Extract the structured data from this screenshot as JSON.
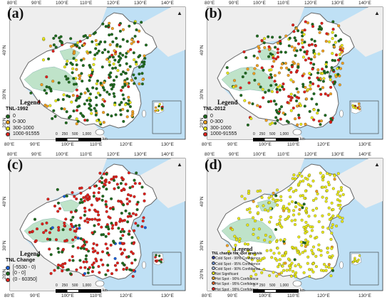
{
  "colors": {
    "sea": "#bfe0f5",
    "land_outside": "#eeeeee",
    "china": "#ffffff",
    "plateau": "#bfe3c9",
    "border": "#666666",
    "dark_green": "#1e6b1e",
    "red": "#e0201a",
    "orange": "#f0a020",
    "yellow": "#e8e816",
    "grey": "#9a9a9a",
    "blue": "#1a5fd8"
  },
  "icons": {
    "north_arrow": "north-arrow-icon"
  },
  "axes": {
    "top_lon": [
      "80°E",
      "90°E",
      "100°E",
      "110°E",
      "120°E",
      "130°E",
      "140°E"
    ],
    "bottom_lon": [
      "80°E",
      "90°E",
      "100°E",
      "110°E",
      "120°E",
      "130°E"
    ],
    "lat": [
      "40°N",
      "30°N",
      "20°N"
    ]
  },
  "scalebar": {
    "ticks": [
      "0",
      "250",
      "500",
      "1,000"
    ],
    "unit": "km"
  },
  "panels": [
    {
      "label": "(a)",
      "legend": {
        "title": "Legend",
        "subtitle": "TNL-1992",
        "items": [
          {
            "label": "0",
            "color": "#1e6b1e"
          },
          {
            "label": "0-300",
            "color": "#f0a020"
          },
          {
            "label": "300-1000",
            "color": "#e8e816"
          },
          {
            "label": "1000-91555",
            "color": "#e0201a"
          }
        ]
      }
    },
    {
      "label": "(b)",
      "legend": {
        "title": "Legend",
        "subtitle": "TNL-2012",
        "items": [
          {
            "label": "0",
            "color": "#1e6b1e"
          },
          {
            "label": "0-300",
            "color": "#f0a020"
          },
          {
            "label": "300-1000",
            "color": "#e8e816"
          },
          {
            "label": "1000-91555",
            "color": "#e0201a"
          }
        ]
      }
    },
    {
      "label": "(c)",
      "legend": {
        "title": "Legend",
        "subtitle": "TNL Change",
        "items": [
          {
            "label": "[-5530 - 0)",
            "color": "#1a5fd8"
          },
          {
            "label": "[0 - 0]",
            "color": "#1e6b1e"
          },
          {
            "label": "(0 - 60350]",
            "color": "#e0201a"
          }
        ]
      }
    },
    {
      "label": "(d)",
      "legend": {
        "title": "Legend",
        "subtitle": "TNL change hot spot analysis",
        "items": [
          {
            "label": "Cold Spot - 99% Confidence",
            "color": "#2f3f9f"
          },
          {
            "label": "Cold Spot - 95% Confidence",
            "color": "#6a8fd0"
          },
          {
            "label": "Cold Spot - 90% Confidence",
            "color": "#a8c0e8"
          },
          {
            "label": "Not Significant",
            "color": "#e8e816"
          },
          {
            "label": "Hot Spot - 90% Confidence",
            "color": "#f0a020"
          },
          {
            "label": "Hot Spot - 95% Confidence",
            "color": "#e06020"
          },
          {
            "label": "Hot Spot - 99% Confidence",
            "color": "#e0201a"
          }
        ]
      }
    }
  ]
}
